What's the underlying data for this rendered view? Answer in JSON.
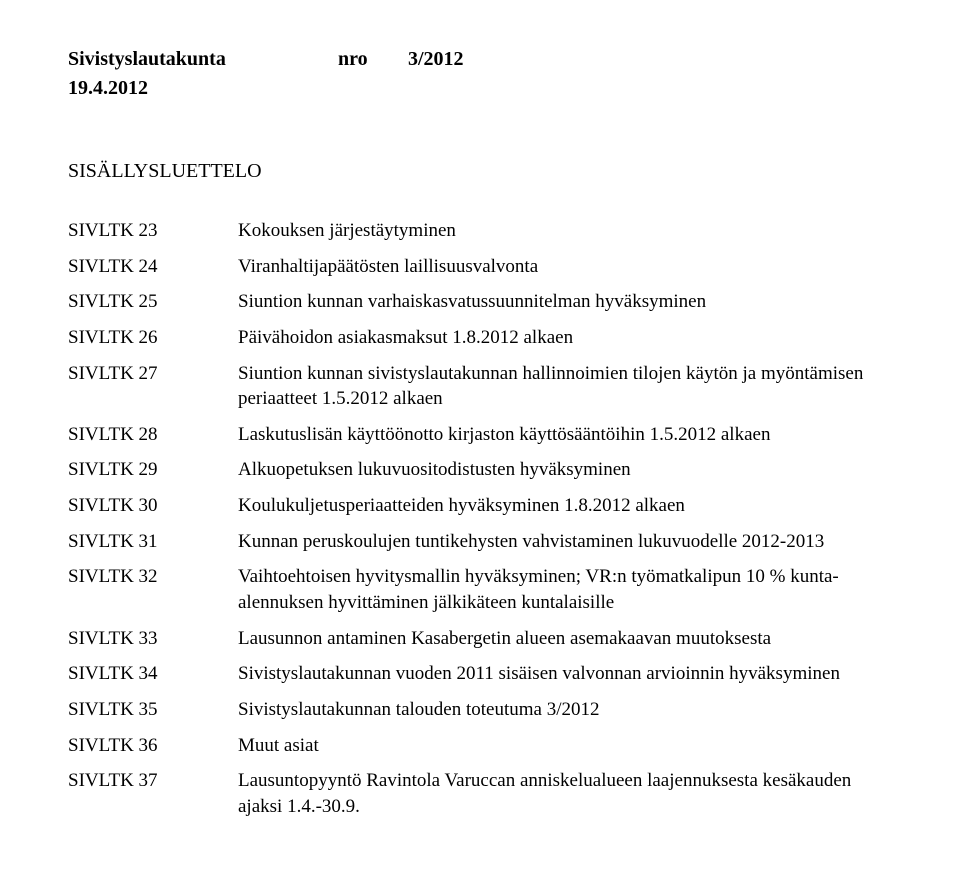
{
  "header": {
    "committee": "Sivistyslautakunta",
    "nro_label": "nro",
    "nro_value": "3/2012",
    "date": "19.4.2012"
  },
  "toc": {
    "title": "SISÄLLYSLUETTELO",
    "items": [
      {
        "key": "SIVLTK 23",
        "text": "Kokouksen järjestäytyminen"
      },
      {
        "key": "SIVLTK 24",
        "text": "Viranhaltijapäätösten laillisuusvalvonta"
      },
      {
        "key": "SIVLTK 25",
        "text": "Siuntion kunnan varhaiskasvatussuunnitelman hyväksyminen"
      },
      {
        "key": "SIVLTK 26",
        "text": "Päivähoidon asiakasmaksut 1.8.2012 alkaen"
      },
      {
        "key": "SIVLTK 27",
        "text": "Siuntion kunnan sivistyslautakunnan hallinnoimien tilojen käytön ja myöntämisen periaatteet 1.5.2012 alkaen"
      },
      {
        "key": "SIVLTK 28",
        "text": "Laskutuslisän käyttöönotto kirjaston käyttösääntöihin 1.5.2012 alkaen"
      },
      {
        "key": "SIVLTK 29",
        "text": "Alkuopetuksen lukuvuositodistusten hyväksyminen"
      },
      {
        "key": "SIVLTK 30",
        "text": "Koulukuljetusperiaatteiden hyväksyminen 1.8.2012 alkaen"
      },
      {
        "key": "SIVLTK 31",
        "text": "Kunnan peruskoulujen tuntikehysten vahvistaminen lukuvuodelle 2012-2013"
      },
      {
        "key": "SIVLTK 32",
        "text": "Vaihtoehtoisen hyvitysmallin hyväksyminen; VR:n työmatkalipun 10 % kunta-alennuksen hyvittäminen jälkikäteen kuntalaisille"
      },
      {
        "key": "SIVLTK 33",
        "text": "Lausunnon antaminen Kasabergetin alueen asemakaavan muutoksesta"
      },
      {
        "key": "SIVLTK 34",
        "text": "Sivistyslautakunnan vuoden 2011 sisäisen valvonnan arvioinnin hyväksyminen"
      },
      {
        "key": "SIVLTK 35",
        "text": "Sivistyslautakunnan talouden toteutuma 3/2012"
      },
      {
        "key": "SIVLTK 36",
        "text": "Muut asiat"
      },
      {
        "key": "SIVLTK 37",
        "text": "Lausuntopyyntö Ravintola Varuccan anniskelualueen laajennuksesta kesäkauden ajaksi 1.4.-30.9."
      }
    ]
  },
  "style": {
    "font_family": "Times New Roman",
    "text_color": "#000000",
    "background_color": "#ffffff",
    "header_fontsize_pt": 15,
    "body_fontsize_pt": 14,
    "header_bold": true
  }
}
